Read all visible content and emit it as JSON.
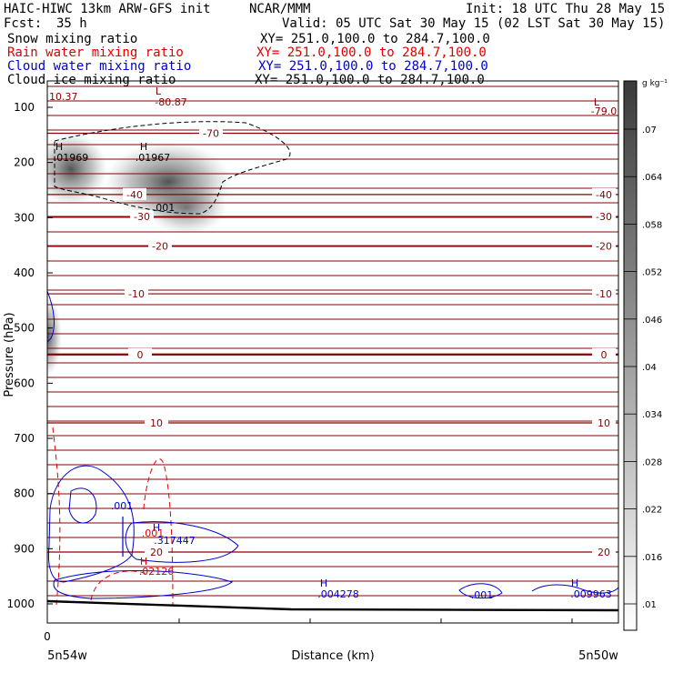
{
  "header": {
    "title_left": "HAIC-HIWC 13km ARW-GFS init",
    "title_center": "NCAR/MMM",
    "init": "Init: 18 UTC Thu 28 May 15",
    "fcst_label": "Fcst:",
    "fcst_value": "35 h",
    "valid": "Valid: 05 UTC Sat 30 May 15 (02 LST Sat 30 May 15)"
  },
  "fields": [
    {
      "name": "Snow mixing ratio",
      "xy": "XY= 251.0,100.0 to 284.7,100.0",
      "color": "#000000"
    },
    {
      "name": "Rain water mixing ratio",
      "xy": "XY= 251.0,100.0 to 284.7,100.0",
      "color": "#e00000"
    },
    {
      "name": "Cloud water mixing ratio",
      "xy": "XY= 251.0,100.0 to 284.7,100.0",
      "color": "#0000d0"
    },
    {
      "name": "Cloud ice mixing ratio",
      "xy": "XY= 251.0,100.0 to 284.7,100.0",
      "color": "#000000"
    }
  ],
  "chart_data": {
    "type": "contour",
    "xlabel": "Distance (km)",
    "ylabel": "Pressure (hPa)",
    "x_ticks": [
      "0"
    ],
    "x_end_labels": [
      "5n54w",
      "5n50w"
    ],
    "y_ticks": [
      100,
      200,
      300,
      400,
      500,
      600,
      700,
      800,
      900,
      1000
    ],
    "ylim": [
      1050,
      80
    ],
    "temperature_isotherms": [
      {
        "value": -70,
        "pressure": 147
      },
      {
        "value": -40,
        "pressure": 258
      },
      {
        "value": -30,
        "pressure": 298
      },
      {
        "value": -20,
        "pressure": 351
      },
      {
        "value": -10,
        "pressure": 438
      },
      {
        "value": 0,
        "pressure": 548
      },
      {
        "value": 10,
        "pressure": 672
      },
      {
        "value": 20,
        "pressure": 906
      }
    ],
    "isotherm_labels": [
      {
        "text": "-70",
        "pressure": 147,
        "pos": "left"
      },
      {
        "text": "-40",
        "pressure": 258,
        "pos": "left"
      },
      {
        "text": "-40",
        "pressure": 258,
        "pos": "right"
      },
      {
        "text": "-30",
        "pressure": 298,
        "pos": "left"
      },
      {
        "text": "-30",
        "pressure": 298,
        "pos": "right"
      },
      {
        "text": "-20",
        "pressure": 351,
        "pos": "left"
      },
      {
        "text": "-20",
        "pressure": 351,
        "pos": "right"
      },
      {
        "text": "-10",
        "pressure": 438,
        "pos": "left"
      },
      {
        "text": "-10",
        "pressure": 438,
        "pos": "right"
      },
      {
        "text": "0",
        "pressure": 548,
        "pos": "left"
      },
      {
        "text": "0",
        "pressure": 548,
        "pos": "right"
      },
      {
        "text": "10",
        "pressure": 672,
        "pos": "left"
      },
      {
        "text": "10",
        "pressure": 672,
        "pos": "right"
      },
      {
        "text": "20",
        "pressure": 906,
        "pos": "left"
      },
      {
        "text": "20",
        "pressure": 906,
        "pos": "right"
      }
    ],
    "annotations": [
      {
        "text": "10.37",
        "color": "#8b0000"
      },
      {
        "text": "L",
        "color": "#8b0000"
      },
      {
        "text": "-80.87",
        "color": "#8b0000"
      },
      {
        "text": "L",
        "color": "#8b0000"
      },
      {
        "text": "-79.0",
        "color": "#8b0000"
      },
      {
        "text": "H",
        "color": "#000000"
      },
      {
        "text": ".01969",
        "color": "#000000"
      },
      {
        "text": "H",
        "color": "#000000"
      },
      {
        "text": ".01967",
        "color": "#000000"
      },
      {
        "text": ".001",
        "color": "#000000"
      },
      {
        "text": ".001",
        "color": "#0000d0"
      },
      {
        "text": "H",
        "color": "#0000d0"
      },
      {
        "text": ".317447",
        "color": "#0000d0"
      },
      {
        "text": ".001",
        "color": "#e00000"
      },
      {
        "text": "H",
        "color": "#e00000"
      },
      {
        "text": ".02126",
        "color": "#e00000"
      },
      {
        "text": "H",
        "color": "#0000d0"
      },
      {
        "text": ".004278",
        "color": "#0000d0"
      },
      {
        "text": ".001",
        "color": "#0000d0"
      },
      {
        "text": "H",
        "color": "#0000d0"
      },
      {
        "text": ".009963",
        "color": "#0000d0"
      }
    ],
    "colorbar": {
      "unit": "g kg⁻¹",
      "ticks": [
        ".07",
        ".064",
        ".058",
        ".052",
        ".046",
        ".04",
        ".034",
        ".028",
        ".022",
        ".016",
        ".01"
      ]
    },
    "colors": {
      "isotherm": "#8b0000",
      "rain": "#e00000",
      "cloud_water": "#0000d0",
      "snow": "#000000"
    }
  }
}
